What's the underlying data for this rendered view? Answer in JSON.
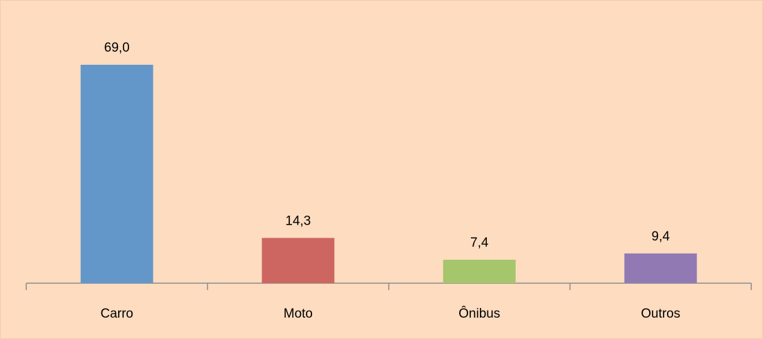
{
  "chart_data": {
    "type": "bar",
    "categories": [
      "Carro",
      "Moto",
      "Ônibus",
      "Outros"
    ],
    "values": [
      69.0,
      14.3,
      7.4,
      9.4
    ],
    "value_labels": [
      "69,0",
      "14,3",
      "7,4",
      "9,4"
    ],
    "colors": [
      "#6497c9",
      "#cd6660",
      "#a6c66c",
      "#917ab4"
    ]
  }
}
